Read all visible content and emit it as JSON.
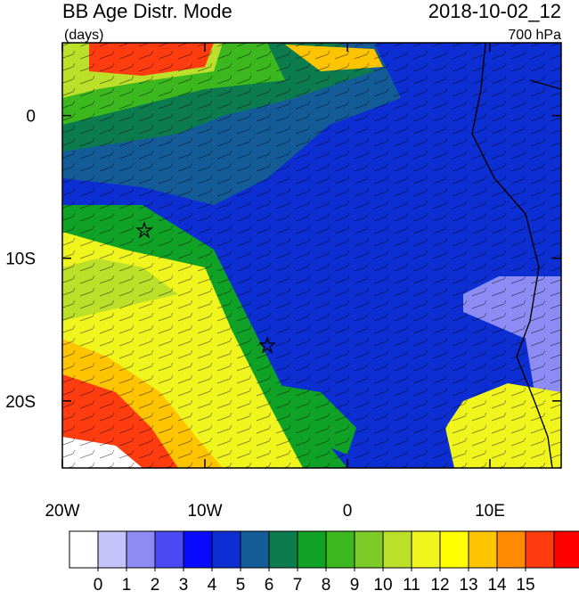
{
  "title": "BB Age Distr. Mode",
  "units": "(days)",
  "date": "2018-10-02_12",
  "level": "700 hPa",
  "map": {
    "xlim": [
      -20,
      15
    ],
    "ylim": [
      -24.7,
      5.1
    ],
    "xticks": [
      {
        "value": -20,
        "label": "20W"
      },
      {
        "value": -10,
        "label": "10W"
      },
      0,
      {
        "value": 10,
        "label": "10E"
      }
    ],
    "yticks": [
      0,
      {
        "value": -10,
        "label": "10S"
      },
      {
        "value": -20,
        "label": "20S"
      }
    ]
  },
  "colorbar": {
    "levels": [
      0,
      1,
      2,
      3,
      4,
      5,
      6,
      7,
      8,
      9,
      10,
      11,
      12,
      13,
      14,
      15
    ],
    "colors": [
      "#ffffff",
      "#c4c4fa",
      "#8c8cf4",
      "#4a4af2",
      "#0a0aff",
      "#0c2ed2",
      "#145c98",
      "#0c7c4e",
      "#10a226",
      "#3cb81e",
      "#7ccc28",
      "#bcdf2a",
      "#f0f51e",
      "#ffff00",
      "#ffc400",
      "#ff8a00",
      "#ff3c10",
      "#ff0000"
    ]
  }
}
